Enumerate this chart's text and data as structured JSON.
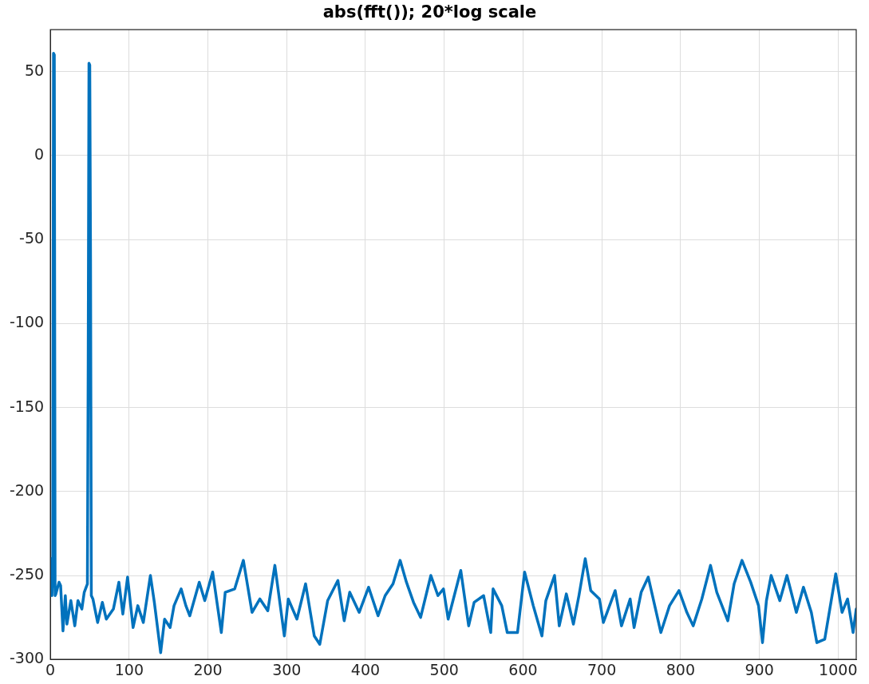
{
  "chart_data": {
    "type": "line",
    "title": "abs(fft()); 20*log scale",
    "x": [
      0,
      1,
      2,
      3,
      4,
      5,
      6,
      7,
      11,
      13,
      16,
      19,
      21,
      26,
      31,
      35,
      40,
      43,
      47,
      48,
      49,
      50,
      51,
      52,
      54,
      60,
      66,
      71,
      80,
      87,
      92,
      98,
      105,
      111,
      118,
      127,
      132,
      140,
      145,
      152,
      157,
      166,
      172,
      177,
      189,
      196,
      206,
      217,
      222,
      234,
      245,
      256,
      266,
      276,
      285,
      297,
      302,
      313,
      324,
      335,
      342,
      352,
      365,
      373,
      380,
      392,
      404,
      416,
      425,
      435,
      444,
      452,
      461,
      470,
      483,
      492,
      499,
      505,
      521,
      531,
      538,
      550,
      559,
      562,
      573,
      580,
      593,
      602,
      613,
      624,
      629,
      640,
      646,
      655,
      664,
      671,
      679,
      686,
      697,
      702,
      717,
      725,
      736,
      741,
      750,
      759,
      775,
      786,
      798,
      808,
      816,
      827,
      838,
      846,
      860,
      868,
      878,
      889,
      899,
      904,
      909,
      915,
      926,
      935,
      947,
      956,
      966,
      973,
      983,
      997,
      1005,
      1012,
      1019,
      1023
    ],
    "series": [
      {
        "color": "#0072bd",
        "values": [
          -262,
          -240,
          -262,
          -250,
          61,
          60,
          -262,
          -261,
          -254,
          -256,
          -283,
          -262,
          -279,
          -265,
          -280,
          -265,
          -270,
          -260,
          -255,
          -125,
          55,
          54,
          -62,
          -262,
          -264,
          -278,
          -266,
          -276,
          -270,
          -254,
          -273,
          -251,
          -281,
          -268,
          -278,
          -250,
          -266,
          -296,
          -276,
          -281,
          -268,
          -258,
          -268,
          -274,
          -254,
          -265,
          -248,
          -284,
          -260,
          -258,
          -241,
          -272,
          -264,
          -271,
          -244,
          -286,
          -264,
          -276,
          -255,
          -286,
          -291,
          -265,
          -253,
          -277,
          -260,
          -272,
          -257,
          -274,
          -262,
          -255,
          -241,
          -254,
          -266,
          -275,
          -250,
          -262,
          -258,
          -276,
          -247,
          -280,
          -266,
          -262,
          -284,
          -258,
          -268,
          -284,
          -284,
          -248,
          -268,
          -286,
          -265,
          -250,
          -280,
          -261,
          -279,
          -262,
          -240,
          -259,
          -264,
          -278,
          -259,
          -280,
          -264,
          -281,
          -260,
          -251,
          -284,
          -268,
          -259,
          -272,
          -280,
          -264,
          -244,
          -260,
          -277,
          -255,
          -241,
          -254,
          -268,
          -290,
          -265,
          -250,
          -265,
          -250,
          -272,
          -257,
          -272,
          -290,
          -288,
          -249,
          -272,
          -264,
          -284,
          -270
        ]
      }
    ],
    "xlim": [
      0,
      1023
    ],
    "ylim": [
      -300,
      75
    ],
    "xticks": [
      0,
      100,
      200,
      300,
      400,
      500,
      600,
      700,
      800,
      900,
      1000
    ],
    "yticks": [
      -300,
      -250,
      -200,
      -150,
      -100,
      -50,
      0,
      50
    ],
    "grid": true,
    "line_style": "solid"
  }
}
